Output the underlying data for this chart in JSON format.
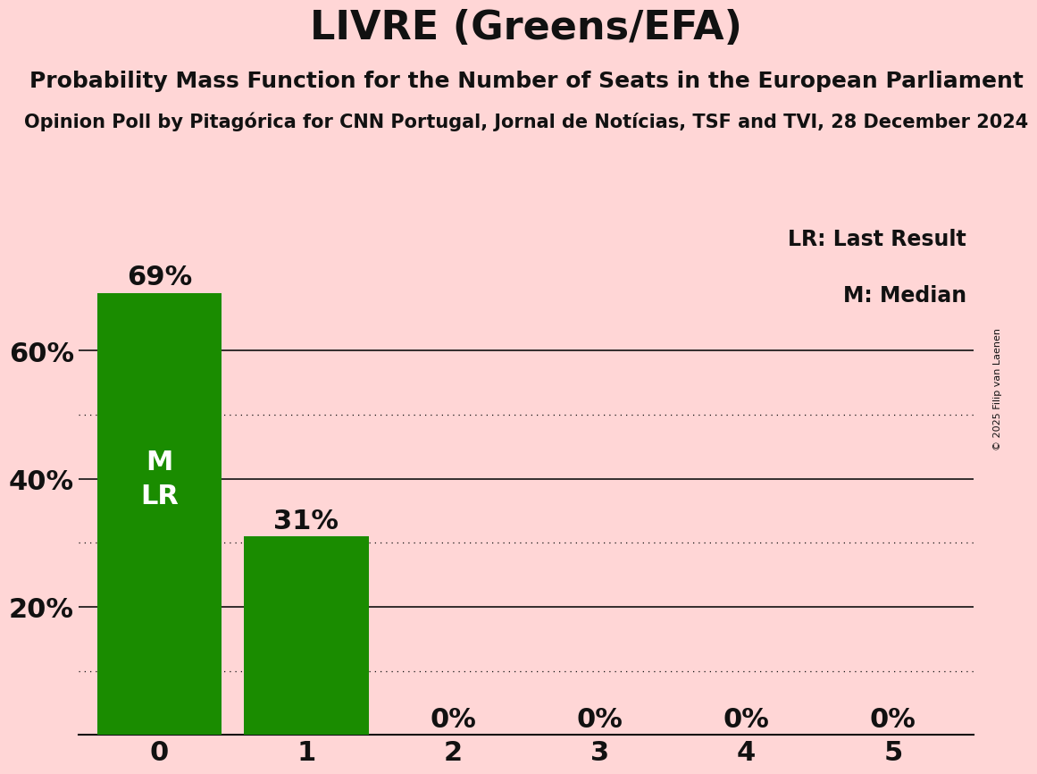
{
  "title": "LIVRE (Greens/EFA)",
  "subtitle": "Probability Mass Function for the Number of Seats in the European Parliament",
  "source_line": "Opinion Poll by Pitagórica for CNN Portugal, Jornal de Notícias, TSF and TVI, 28 December 2024",
  "copyright": "© 2025 Filip van Laenen",
  "categories": [
    0,
    1,
    2,
    3,
    4,
    5
  ],
  "values": [
    0.69,
    0.31,
    0.0,
    0.0,
    0.0,
    0.0
  ],
  "bar_color": "#1a8c00",
  "background_color": "#ffd6d6",
  "bar_labels": [
    "69%",
    "31%",
    "0%",
    "0%",
    "0%",
    "0%"
  ],
  "median_seat": 0,
  "last_result_seat": 0,
  "legend_lr": "LR: Last Result",
  "legend_m": "M: Median",
  "title_fontsize": 32,
  "subtitle_fontsize": 18,
  "source_fontsize": 15,
  "xtick_fontsize": 22,
  "ytick_fontsize": 22,
  "bar_label_fontsize": 22,
  "ml_label_fontsize": 22,
  "legend_fontsize": 17,
  "copyright_fontsize": 8,
  "solid_levels": [
    0.2,
    0.4,
    0.6
  ],
  "dotted_levels": [
    0.1,
    0.3,
    0.5
  ],
  "ylim_max": 0.8,
  "yticks": [
    0.0,
    0.2,
    0.4,
    0.6
  ],
  "ytick_labels": [
    "",
    "20%",
    "40%",
    "60%"
  ]
}
